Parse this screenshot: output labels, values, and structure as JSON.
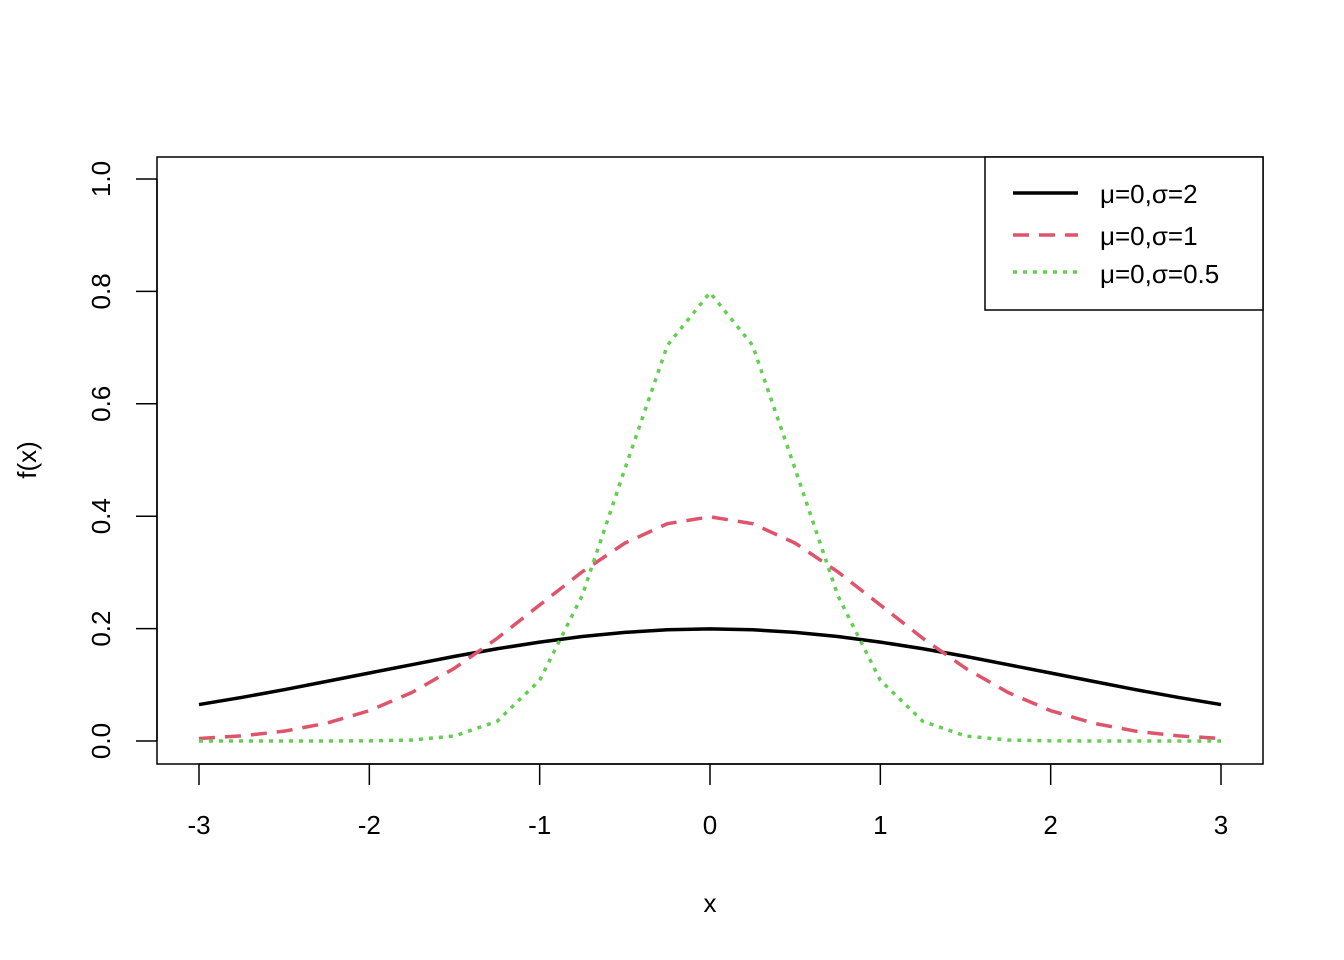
{
  "chart_data": {
    "type": "line",
    "title": "",
    "xlabel": "x",
    "ylabel": "f(x)",
    "xlim": [
      -3,
      3
    ],
    "ylim": [
      0,
      1
    ],
    "xticks": [
      "-3",
      "-2",
      "-1",
      "0",
      "1",
      "2",
      "3"
    ],
    "yticks": [
      "0.0",
      "0.2",
      "0.4",
      "0.6",
      "0.8",
      "1.0"
    ],
    "grid": false,
    "legend_position": "top-right",
    "x": [
      -3.0,
      -2.75,
      -2.5,
      -2.25,
      -2.0,
      -1.75,
      -1.5,
      -1.25,
      -1.0,
      -0.75,
      -0.5,
      -0.25,
      0.0,
      0.25,
      0.5,
      0.75,
      1.0,
      1.25,
      1.5,
      1.75,
      2.0,
      2.25,
      2.5,
      2.75,
      3.0
    ],
    "series": [
      {
        "name": "μ=0,σ=2",
        "color": "#000000",
        "dash": "solid",
        "values": [
          0.0648,
          0.0775,
          0.0913,
          0.1061,
          0.121,
          0.1358,
          0.1506,
          0.1641,
          0.176,
          0.1859,
          0.1933,
          0.1979,
          0.1995,
          0.1979,
          0.1933,
          0.1859,
          0.176,
          0.1641,
          0.1506,
          0.1358,
          0.121,
          0.1061,
          0.0913,
          0.0775,
          0.0648
        ]
      },
      {
        "name": "μ=0,σ=1",
        "color": "#DF536B",
        "dash": "dashed",
        "values": [
          0.0044,
          0.0091,
          0.0175,
          0.0317,
          0.054,
          0.0863,
          0.1295,
          0.1826,
          0.242,
          0.3011,
          0.3521,
          0.3867,
          0.3989,
          0.3867,
          0.3521,
          0.3011,
          0.242,
          0.1826,
          0.1295,
          0.0863,
          0.054,
          0.0317,
          0.0175,
          0.0091,
          0.0044
        ]
      },
      {
        "name": "μ=0,σ=0.5",
        "color": "#61D04F",
        "dash": "dotted",
        "values": [
          0.0,
          0.0,
          0.0,
          0.0,
          0.0003,
          0.0017,
          0.0089,
          0.035,
          0.108,
          0.259,
          0.4839,
          0.7041,
          0.7979,
          0.7041,
          0.4839,
          0.259,
          0.108,
          0.035,
          0.0089,
          0.0017,
          0.0003,
          0.0,
          0.0,
          0.0,
          0.0
        ]
      }
    ]
  }
}
